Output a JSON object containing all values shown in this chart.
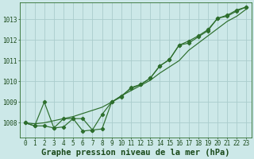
{
  "bg_color": "#cce8e8",
  "grid_color": "#aacccc",
  "line_color": "#2d6e2d",
  "xlabel": "Graphe pression niveau de la mer (hPa)",
  "xlabel_fontsize": 7.5,
  "tick_fontsize": 5.5,
  "xlim": [
    -0.5,
    23.5
  ],
  "ylim": [
    1007.3,
    1013.8
  ],
  "yticks": [
    1008,
    1009,
    1010,
    1011,
    1012,
    1013
  ],
  "xticks": [
    0,
    1,
    2,
    3,
    4,
    5,
    6,
    7,
    8,
    9,
    10,
    11,
    12,
    13,
    14,
    15,
    16,
    17,
    18,
    19,
    20,
    21,
    22,
    23
  ],
  "line1_x": [
    0,
    1,
    2,
    3,
    4,
    5,
    6,
    7,
    8,
    9,
    10,
    11,
    12,
    13,
    14,
    15,
    16,
    17,
    18,
    19,
    20,
    21,
    22,
    23
  ],
  "line1_y": [
    1008.0,
    1007.95,
    1008.0,
    1008.1,
    1008.2,
    1008.3,
    1008.45,
    1008.6,
    1008.75,
    1009.0,
    1009.3,
    1009.55,
    1009.8,
    1010.05,
    1010.4,
    1010.7,
    1011.0,
    1011.5,
    1011.85,
    1012.2,
    1012.55,
    1012.9,
    1013.15,
    1013.5
  ],
  "line2_x": [
    0,
    1,
    2,
    3,
    4,
    5,
    6,
    7,
    8,
    9,
    10,
    11,
    12,
    13,
    14,
    15,
    16,
    17,
    18,
    19,
    20,
    21,
    22,
    23
  ],
  "line2_y": [
    1008.0,
    1007.85,
    1007.85,
    1007.75,
    1007.8,
    1008.2,
    1008.2,
    1007.65,
    1007.7,
    1009.0,
    1009.3,
    1009.65,
    1009.85,
    1010.15,
    1010.75,
    1011.05,
    1011.75,
    1011.95,
    1012.2,
    1012.5,
    1013.05,
    1013.2,
    1013.45,
    1013.6
  ],
  "line3_x": [
    0,
    1,
    2,
    3,
    4,
    5,
    6,
    7,
    8,
    9,
    10,
    11,
    12,
    13,
    14,
    15,
    16,
    17,
    18,
    19,
    20,
    21,
    22,
    23
  ],
  "line3_y": [
    1008.0,
    1007.85,
    1009.0,
    1007.75,
    1008.2,
    1008.2,
    1007.6,
    1007.65,
    1008.4,
    1009.0,
    1009.25,
    1009.7,
    1009.85,
    1010.15,
    1010.75,
    1011.05,
    1011.75,
    1011.85,
    1012.15,
    1012.45,
    1013.05,
    1013.15,
    1013.4,
    1013.6
  ]
}
